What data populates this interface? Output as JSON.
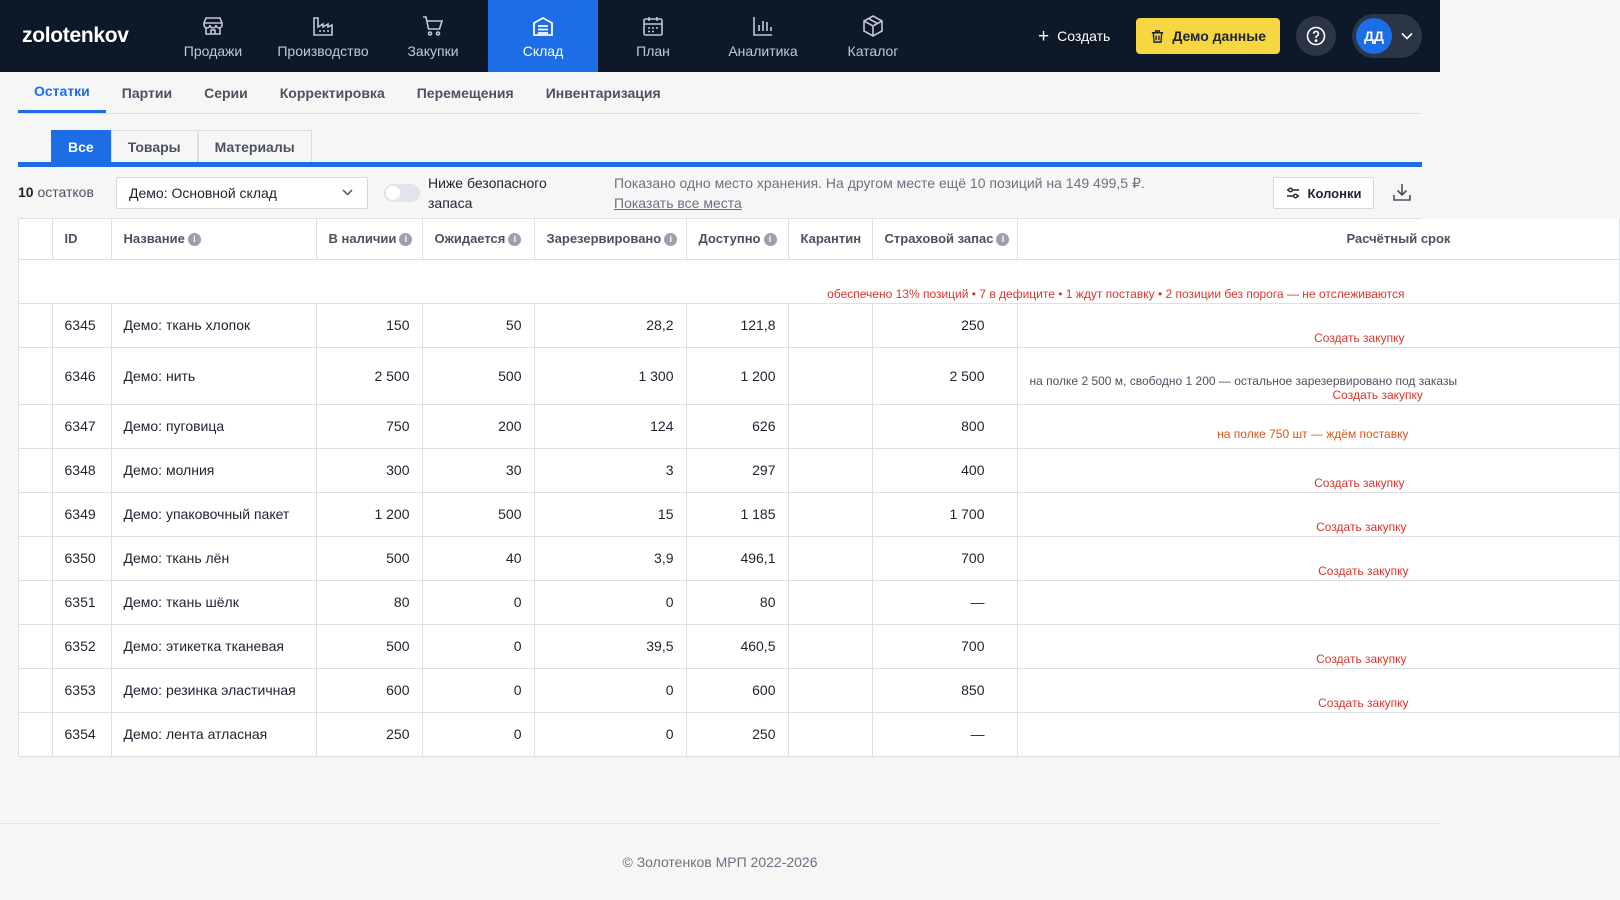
{
  "app": {
    "logo": "zolotenkov"
  },
  "nav": [
    {
      "label": "Продажи",
      "icon": "store-icon"
    },
    {
      "label": "Производство",
      "icon": "factory-icon"
    },
    {
      "label": "Закупки",
      "icon": "cart-icon"
    },
    {
      "label": "Склад",
      "icon": "warehouse-icon",
      "active": true
    },
    {
      "label": "План",
      "icon": "calendar-icon"
    },
    {
      "label": "Аналитика",
      "icon": "chart-icon"
    },
    {
      "label": "Каталог",
      "icon": "box-icon"
    }
  ],
  "header": {
    "create_label": "Создать",
    "demo_label": "Демо данные",
    "avatar_initials": "ДД"
  },
  "subtabs": [
    "Остатки",
    "Партии",
    "Серии",
    "Корректировка",
    "Перемещения",
    "Инвентаризация"
  ],
  "segments": [
    "Все",
    "Товары",
    "Материалы"
  ],
  "toolbar": {
    "count_number": "10",
    "count_label": "остатков",
    "warehouse": "Демо: Основной склад",
    "toggle_label": "Ниже безопасного запаса",
    "info_text": "Показано одно место хранения. На другом месте ещё 10 позиций на 149 499,5 ₽.",
    "info_link": "Показать все места",
    "columns_label": "Колонки"
  },
  "table": {
    "headers": {
      "id": "ID",
      "name": "Название",
      "in_stock": "В наличии",
      "expected": "Ожидается",
      "reserved": "Зарезервировано",
      "available": "Доступно",
      "quarantine": "Карантин",
      "safety": "Страховой запас",
      "calculated": "Расчётный срок"
    },
    "summary": "обеспечено 13% позиций • 7 в дефиците • 1 ждут поставку • 2 позиции без порога — не отслеживаются",
    "rows": [
      {
        "id": "6345",
        "name": "Демо: ткань хлопок",
        "in_stock": "150",
        "expected": "50",
        "reserved": "28,2",
        "available": "121,8",
        "quarantine": "",
        "safety": "250",
        "calc_note": "",
        "calc_action": "Создать закупку"
      },
      {
        "id": "6346",
        "name": "Демо: нить",
        "in_stock": "2 500",
        "expected": "500",
        "reserved": "1 300",
        "available": "1 200",
        "quarantine": "",
        "safety": "2 500",
        "calc_note": "на полке 2 500 м, свободно 1 200 — остальное зарезервировано под заказы",
        "calc_action": "Создать закупку"
      },
      {
        "id": "6347",
        "name": "Демо: пуговица",
        "in_stock": "750",
        "expected": "200",
        "reserved": "124",
        "available": "626",
        "quarantine": "",
        "safety": "800",
        "calc_note": "",
        "calc_action": "",
        "calc_warn": "на полке 750 шт — ждём поставку"
      },
      {
        "id": "6348",
        "name": "Демо: молния",
        "in_stock": "300",
        "expected": "30",
        "reserved": "3",
        "available": "297",
        "quarantine": "",
        "safety": "400",
        "calc_note": "",
        "calc_action": "Создать закупку"
      },
      {
        "id": "6349",
        "name": "Демо: упаковочный пакет",
        "in_stock": "1 200",
        "expected": "500",
        "reserved": "15",
        "available": "1 185",
        "quarantine": "",
        "safety": "1 700",
        "calc_note": "",
        "calc_action": "Создать закупку"
      },
      {
        "id": "6350",
        "name": "Демо: ткань лён",
        "in_stock": "500",
        "expected": "40",
        "reserved": "3,9",
        "available": "496,1",
        "quarantine": "",
        "safety": "700",
        "calc_note": "",
        "calc_action": "Создать закупку"
      },
      {
        "id": "6351",
        "name": "Демо: ткань шёлк",
        "in_stock": "80",
        "expected": "0",
        "reserved": "0",
        "available": "80",
        "quarantine": "",
        "safety": "—",
        "calc_note": "",
        "calc_action": ""
      },
      {
        "id": "6352",
        "name": "Демо: этикетка тканевая",
        "in_stock": "500",
        "expected": "0",
        "reserved": "39,5",
        "available": "460,5",
        "quarantine": "",
        "safety": "700",
        "calc_note": "",
        "calc_action": "Создать закупку"
      },
      {
        "id": "6353",
        "name": "Демо: резинка эластичная",
        "in_stock": "600",
        "expected": "0",
        "reserved": "0",
        "available": "600",
        "quarantine": "",
        "safety": "850",
        "calc_note": "",
        "calc_action": "Создать закупку"
      },
      {
        "id": "6354",
        "name": "Демо: лента атласная",
        "in_stock": "250",
        "expected": "0",
        "reserved": "0",
        "available": "250",
        "quarantine": "",
        "safety": "—",
        "calc_note": "",
        "calc_action": ""
      }
    ]
  },
  "footer": {
    "copyright": "© Золотенков МРП 2022-2026"
  }
}
